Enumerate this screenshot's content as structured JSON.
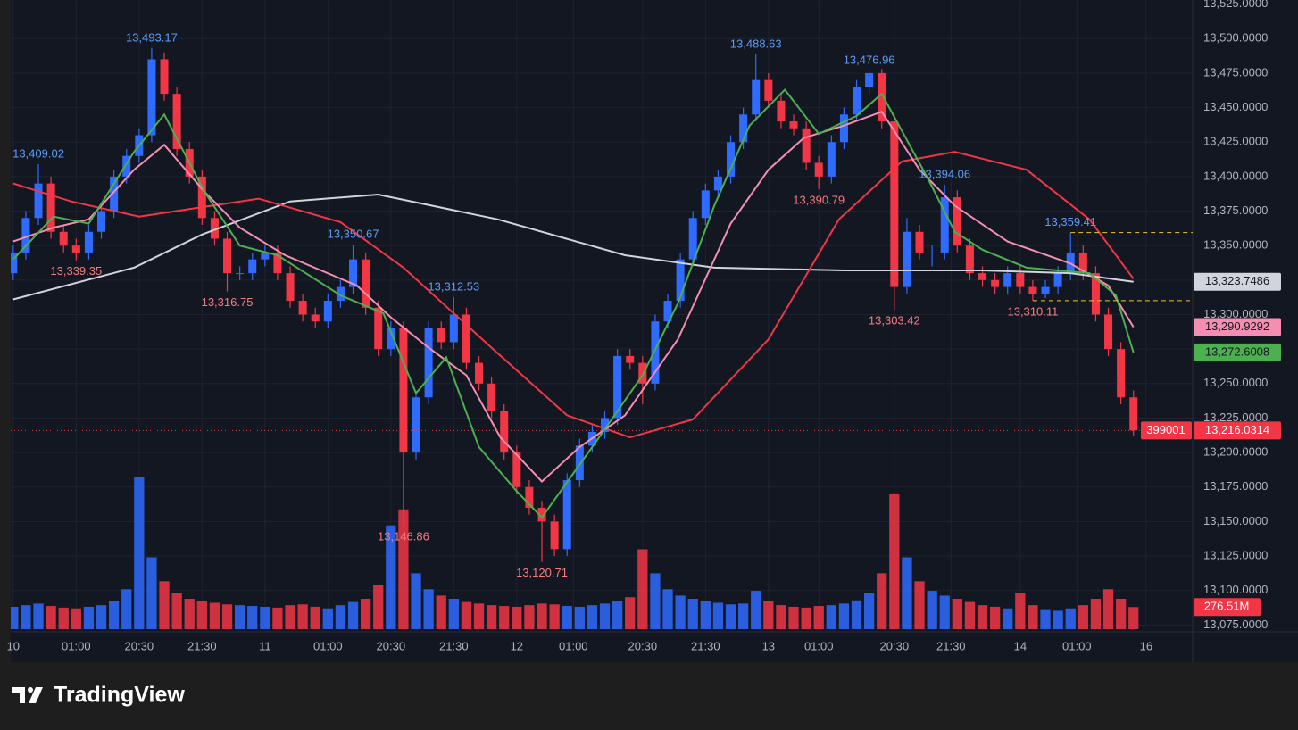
{
  "chart_data": {
    "type": "candlestick",
    "symbol": "399001",
    "last_price_label": "13,216.0314",
    "volume_label": "276.51M",
    "up_color": "#2f6bff",
    "down_color": "#f23645",
    "grid": true,
    "xlim": [
      -0.2,
      93.7
    ],
    "ylim": [
      13072,
      13528
    ],
    "volume_ylim": [
      0,
      7880
    ],
    "yticks": [
      {
        "value": 13075,
        "label": "13,075.0000"
      },
      {
        "value": 13100,
        "label": "13,100.0000"
      },
      {
        "value": 13125,
        "label": "13,125.0000"
      },
      {
        "value": 13150,
        "label": "13,150.0000"
      },
      {
        "value": 13175,
        "label": "13,175.0000"
      },
      {
        "value": 13200,
        "label": "13,200.0000"
      },
      {
        "value": 13225,
        "label": "13,225.0000"
      },
      {
        "value": 13250,
        "label": "13,250.0000"
      },
      {
        "value": 13275,
        "label": "13,275.0000"
      },
      {
        "value": 13300,
        "label": "13,300.0000"
      },
      {
        "value": 13325,
        "label": "13,325.0000"
      },
      {
        "value": 13350,
        "label": "13,350.0000"
      },
      {
        "value": 13375,
        "label": "13,375.0000"
      },
      {
        "value": 13400,
        "label": "13,400.0000"
      },
      {
        "value": 13425,
        "label": "13,425.0000"
      },
      {
        "value": 13450,
        "label": "13,450.0000"
      },
      {
        "value": 13475,
        "label": "13,475.0000"
      },
      {
        "value": 13500,
        "label": "13,500.0000"
      },
      {
        "value": 13525,
        "label": "13,525.0000"
      }
    ],
    "xticks": [
      {
        "value": 0,
        "label": "10"
      },
      {
        "value": 5,
        "label": "01:00"
      },
      {
        "value": 10,
        "label": "20:30"
      },
      {
        "value": 15,
        "label": "21:30"
      },
      {
        "value": 20,
        "label": "11"
      },
      {
        "value": 25,
        "label": "01:00"
      },
      {
        "value": 30,
        "label": "20:30"
      },
      {
        "value": 35,
        "label": "21:30"
      },
      {
        "value": 40,
        "label": "12"
      },
      {
        "value": 44.5,
        "label": "01:00"
      },
      {
        "value": 50,
        "label": "20:30"
      },
      {
        "value": 55,
        "label": "21:30"
      },
      {
        "value": 60,
        "label": "13"
      },
      {
        "value": 64,
        "label": "01:00"
      },
      {
        "value": 70,
        "label": "20:30"
      },
      {
        "value": 74.5,
        "label": "21:30"
      },
      {
        "value": 80,
        "label": "14"
      },
      {
        "value": 84.5,
        "label": "01:00"
      },
      {
        "value": 90,
        "label": "16"
      }
    ],
    "open": [
      13330,
      13345,
      13370,
      13395,
      13360,
      13350,
      13345,
      13360,
      13375,
      13400,
      13415,
      13430,
      13485,
      13460,
      13420,
      13400,
      13370,
      13355,
      13330,
      13330,
      13340,
      13345,
      13330,
      13310,
      13300,
      13295,
      13310,
      13320,
      13340,
      13305,
      13275,
      13290,
      13200,
      13240,
      13290,
      13280,
      13300,
      13265,
      13250,
      13230,
      13200,
      13175,
      13160,
      13150,
      13130,
      13180,
      13205,
      13215,
      13225,
      13270,
      13265,
      13250,
      13295,
      13310,
      13340,
      13370,
      13390,
      13400,
      13425,
      13445,
      13470,
      13455,
      13440,
      13435,
      13410,
      13400,
      13425,
      13445,
      13465,
      13475,
      13440,
      13320,
      13360,
      13345,
      13345,
      13385,
      13350,
      13330,
      13325,
      13320,
      13330,
      13320,
      13315,
      13320,
      13330,
      13345,
      13330,
      13300,
      13275,
      13240
    ],
    "high": [
      13350,
      13375,
      13409.02,
      13400,
      13365,
      13355,
      13365,
      13380,
      13405,
      13420,
      13435,
      13493.17,
      13490,
      13465,
      13425,
      13405,
      13375,
      13360,
      13335,
      13345,
      13350,
      13350,
      13335,
      13315,
      13305,
      13315,
      13325,
      13350.67,
      13345,
      13310,
      13295,
      13295,
      13245,
      13295,
      13295,
      13312.53,
      13305,
      13270,
      13255,
      13235,
      13205,
      13180,
      13165,
      13155,
      13185,
      13210,
      13220,
      13230,
      13275,
      13275,
      13270,
      13300,
      13315,
      13345,
      13375,
      13395,
      13405,
      13430,
      13450,
      13488.63,
      13475,
      13460,
      13445,
      13440,
      13415,
      13430,
      13450,
      13470,
      13476.96,
      13478,
      13445,
      13370,
      13365,
      13350,
      13394.06,
      13390,
      13355,
      13335,
      13330,
      13335,
      13335,
      13325,
      13325,
      13335,
      13359.41,
      13350,
      13335,
      13305,
      13280,
      13245
    ],
    "low": [
      13325,
      13340,
      13365,
      13355,
      13345,
      13339.35,
      13340,
      13355,
      13370,
      13395,
      13410,
      13425,
      13455,
      13415,
      13395,
      13365,
      13350,
      13316.75,
      13325,
      13325,
      13335,
      13325,
      13305,
      13295,
      13290,
      13290,
      13305,
      13315,
      13300,
      13270,
      13270,
      13146.86,
      13195,
      13235,
      13275,
      13275,
      13260,
      13245,
      13225,
      13195,
      13170,
      13155,
      13120.71,
      13125,
      13125,
      13175,
      13200,
      13210,
      13220,
      13260,
      13235,
      13245,
      13290,
      13305,
      13335,
      13365,
      13385,
      13395,
      13420,
      13440,
      13450,
      13435,
      13430,
      13405,
      13390.79,
      13395,
      13420,
      13440,
      13460,
      13435,
      13303.42,
      13315,
      13340,
      13335,
      13340,
      13345,
      13325,
      13320,
      13315,
      13315,
      13315,
      13310.11,
      13312,
      13315,
      13325,
      13325,
      13295,
      13270,
      13235,
      13212
    ],
    "close": [
      13345,
      13370,
      13395,
      13360,
      13350,
      13345,
      13360,
      13375,
      13400,
      13415,
      13430,
      13485,
      13460,
      13420,
      13400,
      13370,
      13355,
      13330,
      13330,
      13340,
      13345,
      13330,
      13310,
      13300,
      13295,
      13310,
      13320,
      13340,
      13305,
      13275,
      13290,
      13200,
      13240,
      13290,
      13280,
      13300,
      13265,
      13250,
      13230,
      13200,
      13175,
      13160,
      13150,
      13130,
      13180,
      13205,
      13215,
      13225,
      13270,
      13265,
      13250,
      13295,
      13310,
      13340,
      13370,
      13390,
      13400,
      13425,
      13445,
      13470,
      13455,
      13440,
      13435,
      13410,
      13400,
      13425,
      13445,
      13465,
      13475,
      13440,
      13320,
      13360,
      13345,
      13345,
      13385,
      13350,
      13330,
      13325,
      13320,
      13330,
      13320,
      13315,
      13320,
      13330,
      13345,
      13330,
      13300,
      13275,
      13240,
      13216.0314
    ],
    "volume": [
      280,
      300,
      320,
      290,
      270,
      260,
      280,
      300,
      350,
      500,
      1900,
      900,
      600,
      450,
      380,
      350,
      330,
      310,
      300,
      290,
      280,
      270,
      300,
      310,
      280,
      260,
      300,
      340,
      380,
      550,
      1300,
      1500,
      700,
      500,
      420,
      380,
      340,
      320,
      300,
      290,
      280,
      300,
      320,
      310,
      290,
      280,
      300,
      320,
      350,
      400,
      1000,
      700,
      500,
      420,
      380,
      350,
      330,
      310,
      320,
      480,
      350,
      300,
      280,
      270,
      290,
      300,
      320,
      360,
      450,
      700,
      1700,
      900,
      600,
      480,
      420,
      380,
      340,
      300,
      280,
      260,
      450,
      300,
      250,
      230,
      260,
      300,
      380,
      500,
      380,
      276.51
    ],
    "high_labels": [
      {
        "index": 2,
        "label": "13,409.02"
      },
      {
        "index": 11,
        "label": "13,493.17"
      },
      {
        "index": 27,
        "label": "13,350.67"
      },
      {
        "index": 35,
        "label": "13,312.53"
      },
      {
        "index": 59,
        "label": "13,488.63"
      },
      {
        "index": 68,
        "label": "13,476.96"
      },
      {
        "index": 74,
        "label": "13,394.06"
      },
      {
        "index": 84,
        "label": "13,359.41"
      }
    ],
    "low_labels": [
      {
        "index": 5,
        "label": "13,339.35"
      },
      {
        "index": 17,
        "label": "13,316.75"
      },
      {
        "index": 31,
        "label": "13,146.86"
      },
      {
        "index": 42,
        "label": "13,120.71"
      },
      {
        "index": 64,
        "label": "13,390.79"
      },
      {
        "index": 70,
        "label": "13,303.42"
      },
      {
        "index": 81,
        "label": "13,310.11"
      }
    ],
    "high_label_color": "#5d9cf5",
    "low_label_color": "#f77c80",
    "levels": [
      {
        "value": 13359.41,
        "from": 84
      },
      {
        "value": 13310.11,
        "from": 81
      }
    ],
    "level_color": "#f0c33c",
    "lines": [
      {
        "color": "#d1d4dc",
        "last_label": "13,323.7486",
        "x": [
          0,
          9.6,
          15,
          22,
          29,
          38.5,
          48.6,
          55.7,
          66,
          77,
          84,
          89
        ],
        "values": [
          13311,
          13334,
          13358,
          13382,
          13387,
          13369,
          13343,
          13334,
          13332,
          13332,
          13330,
          13323.7486
        ]
      },
      {
        "color": "#f23645",
        "x": [
          0,
          4.6,
          10,
          19.5,
          26,
          31,
          38,
          44,
          49,
          54,
          60,
          65.6,
          70.6,
          74.8,
          80.5,
          85.5,
          89
        ],
        "values": [
          13395,
          13382,
          13371,
          13384,
          13367,
          13334,
          13276,
          13227,
          13211,
          13224,
          13282,
          13369,
          13411,
          13418,
          13405,
          13369,
          13326
        ]
      },
      {
        "color": "#f48fb1",
        "last_label": "13,290.9292",
        "x": [
          0,
          3.2,
          6,
          9.6,
          12,
          15.2,
          18,
          21.6,
          27.3,
          30,
          33,
          36,
          38.7,
          42,
          45,
          48.6,
          52.8,
          57,
          60,
          62.8,
          66,
          69,
          72,
          74.8,
          79,
          84,
          87,
          89
        ],
        "values": [
          13353,
          13363,
          13369,
          13405,
          13423,
          13389,
          13363,
          13343,
          13321,
          13298,
          13276,
          13256,
          13211,
          13179,
          13204,
          13227,
          13282,
          13366,
          13405,
          13428,
          13437,
          13447,
          13405,
          13379,
          13353,
          13337,
          13321,
          13290.9292
        ]
      },
      {
        "color": "#4caf50",
        "last_label": "13,272.6008",
        "x": [
          0,
          3.2,
          6,
          9.6,
          12,
          15.2,
          18,
          21,
          26,
          29.4,
          32,
          34.4,
          37,
          40,
          42,
          46,
          50,
          52.8,
          55.7,
          58.5,
          61.3,
          64,
          67,
          69,
          72.7,
          74.8,
          77,
          80.5,
          85.5,
          87.6,
          89
        ],
        "values": [
          13340,
          13371,
          13366,
          13418,
          13445,
          13389,
          13350,
          13343,
          13314,
          13301,
          13243,
          13269,
          13204,
          13172,
          13153,
          13204,
          13256,
          13308,
          13379,
          13437,
          13463,
          13431,
          13444,
          13460,
          13398,
          13360,
          13347,
          13334,
          13330,
          13314,
          13272.6008
        ]
      }
    ]
  },
  "footer": {
    "brand": "TradingView"
  }
}
